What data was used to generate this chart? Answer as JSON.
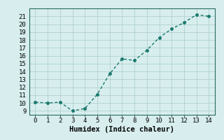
{
  "xlabel": "Humidex (Indice chaleur)",
  "x": [
    0,
    1,
    2,
    3,
    4,
    5,
    6,
    7,
    8,
    9,
    10,
    11,
    12,
    13,
    14
  ],
  "y": [
    10.1,
    10.0,
    10.1,
    9.0,
    9.3,
    11.1,
    13.7,
    15.6,
    15.4,
    16.7,
    18.3,
    19.4,
    20.2,
    21.2,
    21.0
  ],
  "line_color": "#1a7a6e",
  "marker": "o",
  "marker_size": 2.5,
  "bg_color": "#d8eeee",
  "grid_color": "#b0cfcf",
  "ylim": [
    8.5,
    22
  ],
  "xlim": [
    -0.5,
    14.5
  ],
  "yticks": [
    9,
    10,
    11,
    12,
    13,
    14,
    15,
    16,
    17,
    18,
    19,
    20,
    21
  ],
  "xticks": [
    0,
    1,
    2,
    3,
    4,
    5,
    6,
    7,
    8,
    9,
    10,
    11,
    12,
    13,
    14
  ],
  "tick_fontsize": 6.5,
  "label_fontsize": 7.5,
  "line_width": 1.0
}
